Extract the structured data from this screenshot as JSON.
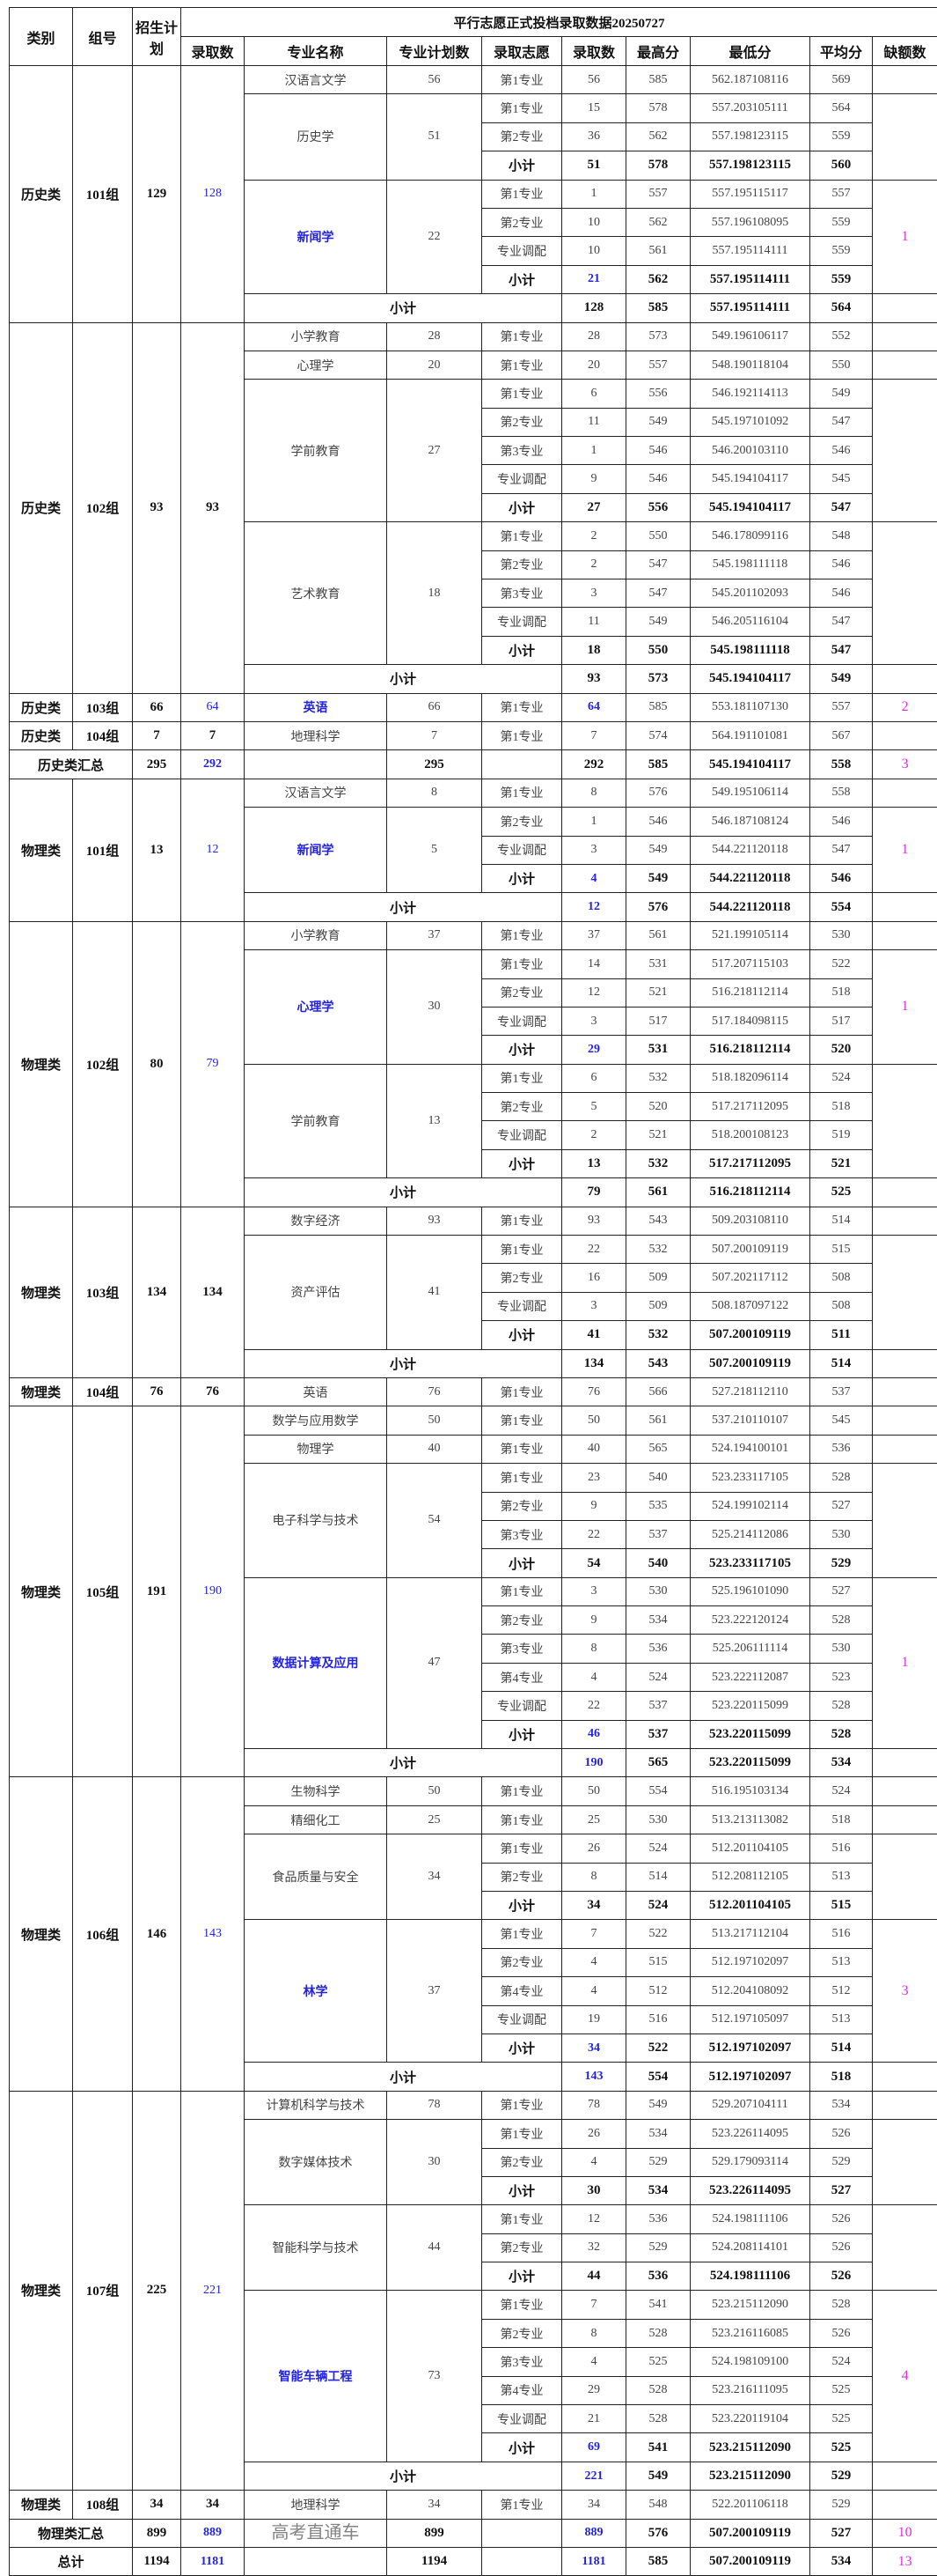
{
  "header": {
    "title": "平行志愿正式投档录取数据20250727",
    "col_category": "类别",
    "col_group": "组号",
    "col_enroll_plan": "招生计划",
    "col_admitted": "录取数",
    "col_major": "专业名称",
    "col_major_plan": "专业计划数",
    "col_choice": "录取志愿",
    "col_count": "录取数",
    "col_max": "最高分",
    "col_min": "最低分",
    "col_avg": "平均分",
    "col_shortfall": "缺额数"
  },
  "subtotal_label": "小计",
  "colors": {
    "highlight_blue": "#2424e0",
    "shortfall_magenta": "#e02ee0"
  },
  "watermark": "高考直通车",
  "sections": [
    {
      "type": "group",
      "category": "历史类",
      "group": "101组",
      "plan": "129",
      "admitted": "128",
      "admitted_hl": true,
      "majors": [
        {
          "name": "汉语言文学",
          "plan": "56",
          "rows": [
            [
              "第1专业",
              "56",
              "585",
              "562.187108116",
              "569"
            ]
          ]
        },
        {
          "name": "历史学",
          "plan": "51",
          "rows": [
            [
              "第1专业",
              "15",
              "578",
              "557.203105111",
              "564"
            ],
            [
              "第2专业",
              "36",
              "562",
              "557.198123115",
              "559"
            ]
          ],
          "subtotal": [
            "51",
            "578",
            "557.198123115",
            "560"
          ]
        },
        {
          "name": "新闻学",
          "plan": "22",
          "hl": true,
          "shortfall": "1",
          "rows": [
            [
              "第1专业",
              "1",
              "557",
              "557.195115117",
              "557"
            ],
            [
              "第2专业",
              "10",
              "562",
              "557.196108095",
              "559"
            ],
            [
              "专业调配",
              "10",
              "561",
              "557.195114111",
              "559"
            ]
          ],
          "subtotal": [
            "21",
            "562",
            "557.195114111",
            "559"
          ],
          "subtotal_hl": true
        }
      ],
      "subtotal": [
        "128",
        "585",
        "557.195114111",
        "564"
      ]
    },
    {
      "type": "group",
      "category": "历史类",
      "group": "102组",
      "plan": "93",
      "admitted": "93",
      "majors": [
        {
          "name": "小学教育",
          "plan": "28",
          "rows": [
            [
              "第1专业",
              "28",
              "573",
              "549.196106117",
              "552"
            ]
          ]
        },
        {
          "name": "心理学",
          "plan": "20",
          "rows": [
            [
              "第1专业",
              "20",
              "557",
              "548.190118104",
              "550"
            ]
          ]
        },
        {
          "name": "学前教育",
          "plan": "27",
          "rows": [
            [
              "第1专业",
              "6",
              "556",
              "546.192114113",
              "549"
            ],
            [
              "第2专业",
              "11",
              "549",
              "545.197101092",
              "547"
            ],
            [
              "第3专业",
              "1",
              "546",
              "546.200103110",
              "546"
            ],
            [
              "专业调配",
              "9",
              "546",
              "545.194104117",
              "545"
            ]
          ],
          "subtotal": [
            "27",
            "556",
            "545.194104117",
            "547"
          ]
        },
        {
          "name": "艺术教育",
          "plan": "18",
          "rows": [
            [
              "第1专业",
              "2",
              "550",
              "546.178099116",
              "548"
            ],
            [
              "第2专业",
              "2",
              "547",
              "545.198111118",
              "546"
            ],
            [
              "第3专业",
              "3",
              "547",
              "545.201102093",
              "546"
            ],
            [
              "专业调配",
              "11",
              "549",
              "546.205116104",
              "547"
            ]
          ],
          "subtotal": [
            "18",
            "550",
            "545.198111118",
            "547"
          ]
        }
      ],
      "subtotal": [
        "93",
        "573",
        "545.194104117",
        "549"
      ]
    },
    {
      "type": "group",
      "category": "历史类",
      "group": "103组",
      "plan": "66",
      "admitted": "64",
      "admitted_hl": true,
      "majors": [
        {
          "name": "英语",
          "plan": "66",
          "hl": true,
          "shortfall": "2",
          "count_hl": true,
          "rows": [
            [
              "第1专业",
              "64",
              "585",
              "553.181107130",
              "557"
            ]
          ]
        }
      ]
    },
    {
      "type": "group",
      "category": "历史类",
      "group": "104组",
      "plan": "7",
      "admitted": "7",
      "majors": [
        {
          "name": "地理科学",
          "plan": "7",
          "rows": [
            [
              "第1专业",
              "7",
              "574",
              "564.191101081",
              "567"
            ]
          ]
        }
      ]
    },
    {
      "type": "summary",
      "label": "历史类汇总",
      "plan": "295",
      "admitted": "292",
      "major_plan": "295",
      "count": "292",
      "max": "585",
      "min": "545.194104117",
      "avg": "558",
      "shortfall": "3",
      "count_hl": false
    },
    {
      "type": "group",
      "category": "物理类",
      "group": "101组",
      "plan": "13",
      "admitted": "12",
      "admitted_hl": true,
      "majors": [
        {
          "name": "汉语言文学",
          "plan": "8",
          "rows": [
            [
              "第1专业",
              "8",
              "576",
              "549.195106114",
              "558"
            ]
          ]
        },
        {
          "name": "新闻学",
          "plan": "5",
          "hl": true,
          "shortfall": "1",
          "rows": [
            [
              "第2专业",
              "1",
              "546",
              "546.187108124",
              "546"
            ],
            [
              "专业调配",
              "3",
              "549",
              "544.221120118",
              "547"
            ]
          ],
          "subtotal": [
            "4",
            "549",
            "544.221120118",
            "546"
          ],
          "subtotal_hl": true
        }
      ],
      "subtotal": [
        "12",
        "576",
        "544.221120118",
        "554"
      ],
      "subtotal_hl": true
    },
    {
      "type": "group",
      "category": "物理类",
      "group": "102组",
      "plan": "80",
      "admitted": "79",
      "admitted_hl": true,
      "majors": [
        {
          "name": "小学教育",
          "plan": "37",
          "rows": [
            [
              "第1专业",
              "37",
              "561",
              "521.199105114",
              "530"
            ]
          ]
        },
        {
          "name": "心理学",
          "plan": "30",
          "hl": true,
          "shortfall": "1",
          "rows": [
            [
              "第1专业",
              "14",
              "531",
              "517.207115103",
              "522"
            ],
            [
              "第2专业",
              "12",
              "521",
              "516.218112114",
              "518"
            ],
            [
              "专业调配",
              "3",
              "517",
              "517.184098115",
              "517"
            ]
          ],
          "subtotal": [
            "29",
            "531",
            "516.218112114",
            "520"
          ],
          "subtotal_hl": true
        },
        {
          "name": "学前教育",
          "plan": "13",
          "rows": [
            [
              "第1专业",
              "6",
              "532",
              "518.182096114",
              "524"
            ],
            [
              "第2专业",
              "5",
              "520",
              "517.217112095",
              "518"
            ],
            [
              "专业调配",
              "2",
              "521",
              "518.200108123",
              "519"
            ]
          ],
          "subtotal": [
            "13",
            "532",
            "517.217112095",
            "521"
          ]
        }
      ],
      "subtotal": [
        "79",
        "561",
        "516.218112114",
        "525"
      ]
    },
    {
      "type": "group",
      "category": "物理类",
      "group": "103组",
      "plan": "134",
      "admitted": "134",
      "majors": [
        {
          "name": "数字经济",
          "plan": "93",
          "rows": [
            [
              "第1专业",
              "93",
              "543",
              "509.203108110",
              "514"
            ]
          ]
        },
        {
          "name": "资产评估",
          "plan": "41",
          "rows": [
            [
              "第1专业",
              "22",
              "532",
              "507.200109119",
              "515"
            ],
            [
              "第2专业",
              "16",
              "509",
              "507.202117112",
              "508"
            ],
            [
              "专业调配",
              "3",
              "509",
              "508.187097122",
              "508"
            ]
          ],
          "subtotal": [
            "41",
            "532",
            "507.200109119",
            "511"
          ]
        }
      ],
      "subtotal": [
        "134",
        "543",
        "507.200109119",
        "514"
      ]
    },
    {
      "type": "group",
      "category": "物理类",
      "group": "104组",
      "plan": "76",
      "admitted": "76",
      "majors": [
        {
          "name": "英语",
          "plan": "76",
          "rows": [
            [
              "第1专业",
              "76",
              "566",
              "527.218112110",
              "537"
            ]
          ]
        }
      ]
    },
    {
      "type": "group",
      "category": "物理类",
      "group": "105组",
      "plan": "191",
      "admitted": "190",
      "admitted_hl": true,
      "majors": [
        {
          "name": "数学与应用数学",
          "plan": "50",
          "rows": [
            [
              "第1专业",
              "50",
              "561",
              "537.210110107",
              "545"
            ]
          ]
        },
        {
          "name": "物理学",
          "plan": "40",
          "rows": [
            [
              "第1专业",
              "40",
              "565",
              "524.194100101",
              "536"
            ]
          ]
        },
        {
          "name": "电子科学与技术",
          "plan": "54",
          "rows": [
            [
              "第1专业",
              "23",
              "540",
              "523.233117105",
              "528"
            ],
            [
              "第2专业",
              "9",
              "535",
              "524.199102114",
              "527"
            ],
            [
              "第3专业",
              "22",
              "537",
              "525.214112086",
              "530"
            ]
          ],
          "subtotal": [
            "54",
            "540",
            "523.233117105",
            "529"
          ]
        },
        {
          "name": "数据计算及应用",
          "plan": "47",
          "hl": true,
          "shortfall": "1",
          "rows": [
            [
              "第1专业",
              "3",
              "530",
              "525.196101090",
              "527"
            ],
            [
              "第2专业",
              "9",
              "534",
              "523.222120124",
              "528"
            ],
            [
              "第3专业",
              "8",
              "536",
              "525.206111114",
              "530"
            ],
            [
              "第4专业",
              "4",
              "524",
              "523.222112087",
              "523"
            ],
            [
              "专业调配",
              "22",
              "537",
              "523.220115099",
              "528"
            ]
          ],
          "subtotal": [
            "46",
            "537",
            "523.220115099",
            "528"
          ],
          "subtotal_hl": true
        }
      ],
      "subtotal": [
        "190",
        "565",
        "523.220115099",
        "534"
      ],
      "subtotal_hl": true
    },
    {
      "type": "group",
      "category": "物理类",
      "group": "106组",
      "plan": "146",
      "admitted": "143",
      "admitted_hl": true,
      "majors": [
        {
          "name": "生物科学",
          "plan": "50",
          "rows": [
            [
              "第1专业",
              "50",
              "554",
              "516.195103134",
              "524"
            ]
          ]
        },
        {
          "name": "精细化工",
          "plan": "25",
          "rows": [
            [
              "第1专业",
              "25",
              "530",
              "513.213113082",
              "518"
            ]
          ]
        },
        {
          "name": "食品质量与安全",
          "plan": "34",
          "rows": [
            [
              "第1专业",
              "26",
              "524",
              "512.201104105",
              "516"
            ],
            [
              "第2专业",
              "8",
              "514",
              "512.208112105",
              "513"
            ]
          ],
          "subtotal": [
            "34",
            "524",
            "512.201104105",
            "515"
          ]
        },
        {
          "name": "林学",
          "plan": "37",
          "hl": true,
          "shortfall": "3",
          "rows": [
            [
              "第1专业",
              "7",
              "522",
              "513.217112104",
              "516"
            ],
            [
              "第2专业",
              "4",
              "515",
              "512.197102097",
              "513"
            ],
            [
              "第4专业",
              "4",
              "512",
              "512.204108092",
              "512"
            ],
            [
              "专业调配",
              "19",
              "516",
              "512.197105097",
              "513"
            ]
          ],
          "subtotal": [
            "34",
            "522",
            "512.197102097",
            "514"
          ],
          "subtotal_hl": true
        }
      ],
      "subtotal": [
        "143",
        "554",
        "512.197102097",
        "518"
      ],
      "subtotal_hl": true
    },
    {
      "type": "group",
      "category": "物理类",
      "group": "107组",
      "plan": "225",
      "admitted": "221",
      "admitted_hl": true,
      "majors": [
        {
          "name": "计算机科学与技术",
          "plan": "78",
          "rows": [
            [
              "第1专业",
              "78",
              "549",
              "529.207104111",
              "534"
            ]
          ]
        },
        {
          "name": "数字媒体技术",
          "plan": "30",
          "rows": [
            [
              "第1专业",
              "26",
              "534",
              "523.226114095",
              "526"
            ],
            [
              "第2专业",
              "4",
              "529",
              "529.179093114",
              "529"
            ]
          ],
          "subtotal": [
            "30",
            "534",
            "523.226114095",
            "527"
          ]
        },
        {
          "name": "智能科学与技术",
          "plan": "44",
          "rows": [
            [
              "第1专业",
              "12",
              "536",
              "524.198111106",
              "526"
            ],
            [
              "第2专业",
              "32",
              "529",
              "524.208114101",
              "526"
            ]
          ],
          "subtotal": [
            "44",
            "536",
            "524.198111106",
            "526"
          ]
        },
        {
          "name": "智能车辆工程",
          "plan": "73",
          "hl": true,
          "shortfall": "4",
          "rows": [
            [
              "第1专业",
              "7",
              "541",
              "523.215112090",
              "528"
            ],
            [
              "第2专业",
              "8",
              "528",
              "523.216116085",
              "526"
            ],
            [
              "第3专业",
              "4",
              "525",
              "524.198109100",
              "524"
            ],
            [
              "第4专业",
              "29",
              "528",
              "523.216111095",
              "525"
            ],
            [
              "专业调配",
              "21",
              "528",
              "523.220119104",
              "525"
            ]
          ],
          "subtotal": [
            "69",
            "541",
            "523.215112090",
            "525"
          ],
          "subtotal_hl": true
        }
      ],
      "subtotal": [
        "221",
        "549",
        "523.215112090",
        "529"
      ],
      "subtotal_hl": true
    },
    {
      "type": "group",
      "category": "物理类",
      "group": "108组",
      "plan": "34",
      "admitted": "34",
      "majors": [
        {
          "name": "地理科学",
          "plan": "34",
          "rows": [
            [
              "第1专业",
              "34",
              "548",
              "522.201106118",
              "529"
            ]
          ]
        }
      ]
    },
    {
      "type": "summary",
      "label": "物理类汇总",
      "plan": "899",
      "admitted": "889",
      "major_plan": "899",
      "count": "889",
      "max": "576",
      "min": "507.200109119",
      "avg": "527",
      "shortfall": "10",
      "count_hl": true
    },
    {
      "type": "summary",
      "label": "总计",
      "plan": "1194",
      "admitted": "1181",
      "major_plan": "1194",
      "count": "1181",
      "max": "585",
      "min": "507.200109119",
      "avg": "534",
      "shortfall": "13",
      "count_hl": true
    }
  ]
}
